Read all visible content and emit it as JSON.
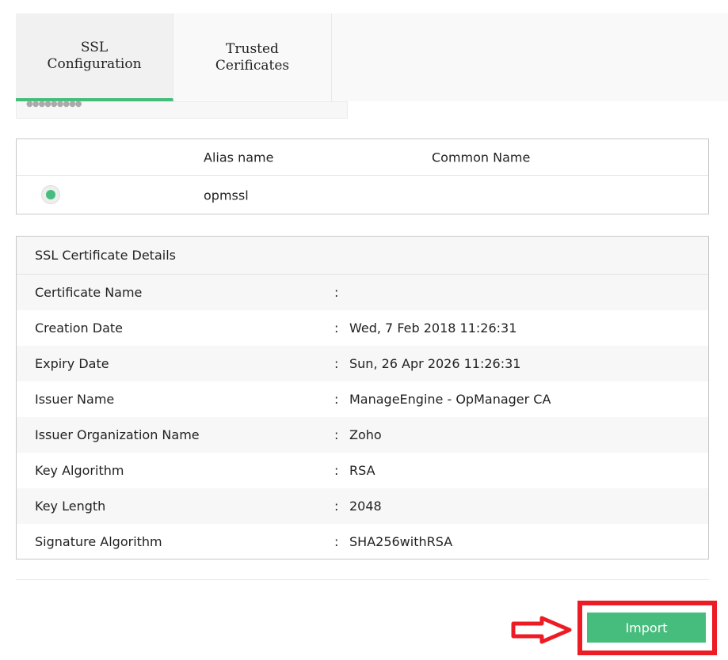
{
  "tabs": [
    {
      "label": "SSL Configuration",
      "active": true
    },
    {
      "label": "Trusted Cerificates",
      "active": false
    }
  ],
  "password_mask": "●●●●●●●●●",
  "alias_table": {
    "headers": [
      "Alias name",
      "Common Name"
    ],
    "rows": [
      {
        "selected": true,
        "alias": "opmssl",
        "common_name": ""
      }
    ]
  },
  "details": {
    "title": "SSL Certificate Details",
    "rows": [
      {
        "label": "Certificate Name",
        "value": ""
      },
      {
        "label": "Creation Date",
        "value": "Wed, 7 Feb 2018 11:26:31"
      },
      {
        "label": "Expiry Date",
        "value": "Sun, 26 Apr 2026 11:26:31"
      },
      {
        "label": "Issuer Name",
        "value": "ManageEngine - OpManager CA"
      },
      {
        "label": "Issuer Organization Name",
        "value": "Zoho"
      },
      {
        "label": "Key Algorithm",
        "value": "RSA"
      },
      {
        "label": "Key Length",
        "value": "2048"
      },
      {
        "label": "Signature Algorithm",
        "value": "SHA256withRSA"
      }
    ]
  },
  "colon": ":",
  "import_label": "Import",
  "colors": {
    "accent": "#47bd7d",
    "highlight": "#ed1c24"
  }
}
